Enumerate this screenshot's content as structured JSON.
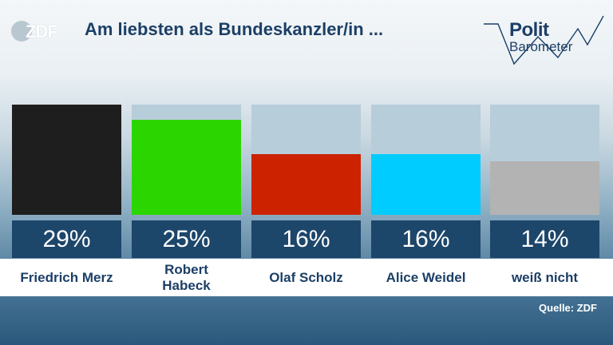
{
  "header": {
    "logo_text": "ZDF",
    "title": "Am liebsten als Bundeskanzler/in ...",
    "brand_line1": "Polit",
    "brand_line2": "Barometer"
  },
  "source": "Quelle: ZDF",
  "chart_data": {
    "type": "bar",
    "title": "Am liebsten als Bundeskanzler/in ...",
    "categories": [
      "Friedrich Merz",
      "Robert Habeck",
      "Olaf Scholz",
      "Alice Weidel",
      "weiß nicht"
    ],
    "values": [
      29,
      25,
      16,
      16,
      14
    ],
    "value_labels": [
      "29%",
      "25%",
      "16%",
      "16%",
      "14%"
    ],
    "colors": [
      "#1e1e1e",
      "#2bd600",
      "#cc2200",
      "#00ccff",
      "#b3b3b3"
    ],
    "ylim": [
      0,
      29
    ],
    "background_track_color": "#b7cdd9",
    "grid": false,
    "legend": "none"
  }
}
